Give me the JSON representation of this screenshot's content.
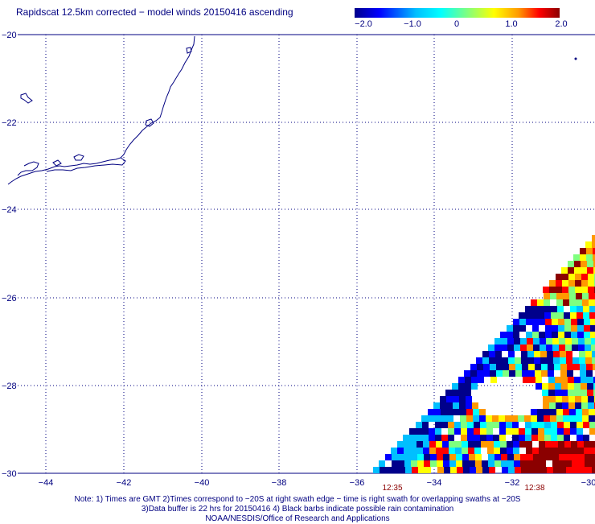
{
  "title": "Rapidscat 12.5km corrected − model winds 20150416 ascending",
  "colorbar": {
    "labels": [
      "−2.0",
      "−1.0",
      "0",
      "1.0",
      "2.0"
    ],
    "range": [
      -2.0,
      2.0
    ],
    "colors": [
      "#00008b",
      "#0000ff",
      "#00bfff",
      "#00ffff",
      "#7fff7f",
      "#ffff00",
      "#ff9900",
      "#ff0000",
      "#8b0000"
    ]
  },
  "map": {
    "lon_range": [
      -45,
      -30
    ],
    "lat_range": [
      -30,
      -20
    ],
    "lon_ticks": [
      "−44",
      "−42",
      "−40",
      "−38",
      "−36",
      "−34",
      "−32",
      "−30"
    ],
    "lat_ticks": [
      "−20",
      "−22",
      "−24",
      "−26",
      "−28",
      "−30"
    ],
    "grid_style": "dotted",
    "coast_color": "#000080"
  },
  "swath_times": [
    "12:35",
    "12:38"
  ],
  "notes": [
    "Note: 1) Times are GMT 2)Times correspond to −20S at right swath edge − time is right swath for overlapping swaths at −20S",
    "3)Data buffer is 22 hrs for 20150416 4) Black barbs indicate possible rain contamination",
    "NOAA/NESDIS/Office of Research and Applications"
  ]
}
